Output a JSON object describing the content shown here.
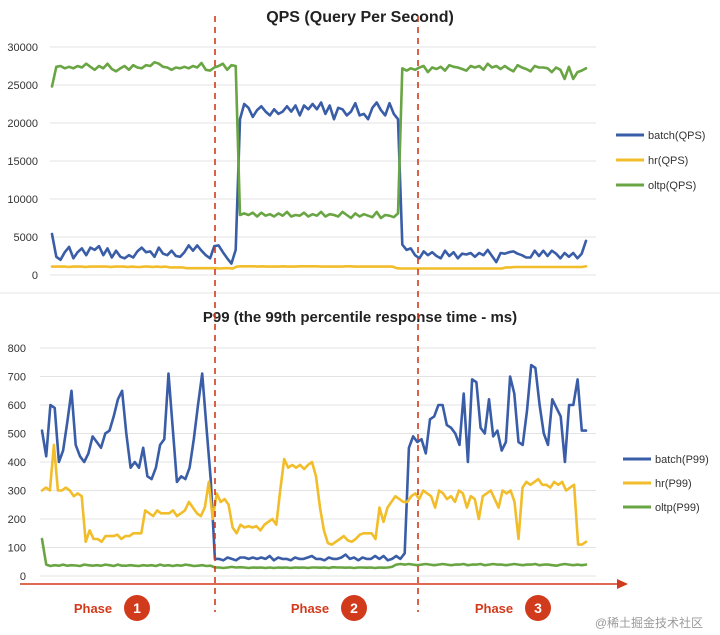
{
  "colors": {
    "batch": "#3a5da8",
    "hr": "#f2bd2a",
    "oltp": "#6aa544",
    "phase": "#d23a1c",
    "grid": "#e3e3e3",
    "axis_text": "#333333"
  },
  "chart_data": [
    {
      "type": "line",
      "title": "QPS (Query Per Second)",
      "ylim": [
        0,
        30000
      ],
      "yticks": [
        0,
        5000,
        10000,
        15000,
        20000,
        25000,
        30000
      ],
      "yticklabels": [
        "0",
        "5000",
        "10000",
        "15000",
        "20000",
        "25000",
        "30000"
      ],
      "grid": true,
      "legend": "right",
      "series": [
        {
          "name": "batch(QPS)",
          "color_key": "batch",
          "values": [
            5400,
            2400,
            2000,
            3000,
            3700,
            2200,
            3000,
            3500,
            2600,
            3600,
            3300,
            3800,
            2600,
            3500,
            2300,
            3200,
            2400,
            2200,
            2600,
            2300,
            3100,
            3600,
            3000,
            3100,
            2400,
            3600,
            2800,
            2600,
            3200,
            2500,
            2400,
            3000,
            3900,
            3200,
            3900,
            3200,
            2600,
            2200,
            3800,
            3900,
            3000,
            2200,
            1500,
            3300,
            20500,
            22500,
            22000,
            20800,
            21700,
            22200,
            21500,
            21000,
            21800,
            21200,
            21500,
            22200,
            21500,
            22300,
            21000,
            22300,
            21800,
            22500,
            21800,
            22700,
            21200,
            22300,
            20500,
            22000,
            21800,
            21000,
            21500,
            22600,
            21000,
            21200,
            20500,
            22000,
            22700,
            21700,
            21000,
            22600,
            21200,
            20500,
            4000,
            3300,
            3500,
            2600,
            2200,
            3100,
            2600,
            3000,
            2500,
            2200,
            3200,
            2500,
            3000,
            2200,
            2800,
            2700,
            2900,
            2400,
            2900,
            2600,
            3300,
            2500,
            1700,
            2900,
            2800,
            3000,
            3100,
            2800,
            2600,
            2300,
            2300,
            3200,
            2500,
            3200,
            2500,
            3200,
            2800,
            2200,
            2900,
            2400,
            2900,
            2200,
            2800,
            4500
          ]
        },
        {
          "name": "hr(QPS)",
          "color_key": "hr",
          "values": [
            1100,
            1100,
            1100,
            1100,
            1050,
            1100,
            1100,
            1100,
            1050,
            1100,
            1100,
            1100,
            1100,
            1100,
            1050,
            1100,
            1100,
            1100,
            1050,
            1100,
            1050,
            1050,
            1100,
            1100,
            1050,
            1100,
            1050,
            1100,
            1000,
            1000,
            1000,
            1000,
            900,
            900,
            900,
            900,
            900,
            900,
            900,
            900,
            850,
            900,
            900,
            850,
            1100,
            1150,
            1150,
            1150,
            1150,
            1100,
            1150,
            1100,
            1100,
            1100,
            1100,
            1150,
            1100,
            1100,
            1100,
            1150,
            1150,
            1150,
            1150,
            1150,
            1100,
            1100,
            1100,
            1100,
            1100,
            1100,
            1150,
            1150,
            1100,
            1100,
            1100,
            1100,
            1100,
            1100,
            1100,
            1100,
            1100,
            1100,
            900,
            850,
            850,
            850,
            850,
            850,
            850,
            850,
            850,
            850,
            850,
            850,
            850,
            850,
            850,
            850,
            850,
            850,
            850,
            850,
            850,
            850,
            850,
            850,
            850,
            850,
            1000,
            1000,
            1050,
            1050,
            1050,
            1050,
            1050,
            1050,
            1050,
            1050,
            1050,
            1050,
            1050,
            1050,
            1050,
            1050,
            1050,
            1050,
            1050,
            1150
          ]
        },
        {
          "name": "oltp(QPS)",
          "color_key": "oltp",
          "values": [
            24800,
            27400,
            27500,
            27200,
            27400,
            27200,
            27500,
            27300,
            27800,
            27400,
            27000,
            27500,
            27200,
            27800,
            27100,
            26800,
            27200,
            27500,
            27000,
            27600,
            27300,
            27200,
            27600,
            27500,
            28000,
            27800,
            27400,
            27300,
            27000,
            27300,
            27200,
            27400,
            27200,
            27500,
            27300,
            27900,
            27000,
            26900,
            27300,
            27500,
            27800,
            27000,
            27600,
            27500,
            7900,
            8100,
            7900,
            8200,
            7700,
            8200,
            7800,
            8000,
            7700,
            8100,
            7800,
            8300,
            7700,
            7900,
            7800,
            8200,
            7700,
            8000,
            7800,
            8300,
            7700,
            8000,
            7900,
            7700,
            8300,
            7900,
            7500,
            8100,
            7700,
            8000,
            7800,
            7600,
            8300,
            7500,
            7900,
            7800,
            7600,
            8100,
            27200,
            26900,
            27200,
            27000,
            27300,
            27500,
            26700,
            27300,
            27100,
            27400,
            26900,
            27600,
            27400,
            27300,
            27100,
            26900,
            27500,
            27300,
            27500,
            27000,
            27800,
            27300,
            27500,
            27100,
            27500,
            27100,
            26800,
            27600,
            27300,
            27100,
            26800,
            27500,
            27300,
            27300,
            27200,
            26700,
            27300,
            27000,
            25800,
            27400,
            25800,
            26700,
            26900,
            27200
          ]
        }
      ]
    },
    {
      "type": "line",
      "title": "P99 (the 99th percentile response time - ms)",
      "ylim": [
        0,
        800
      ],
      "yticks": [
        0,
        100,
        200,
        300,
        400,
        500,
        600,
        700,
        800
      ],
      "yticklabels": [
        "0",
        "100",
        "200",
        "300",
        "400",
        "500",
        "600",
        "700",
        "800"
      ],
      "grid": true,
      "legend": "right",
      "phases": [
        {
          "label": "Phase",
          "number": "1"
        },
        {
          "label": "Phase",
          "number": "2"
        },
        {
          "label": "Phase",
          "number": "3"
        }
      ],
      "series": [
        {
          "name": "batch(P99)",
          "color_key": "batch",
          "values": [
            510,
            420,
            600,
            590,
            400,
            440,
            540,
            650,
            460,
            420,
            400,
            430,
            490,
            470,
            450,
            500,
            510,
            560,
            620,
            650,
            500,
            380,
            400,
            380,
            450,
            350,
            340,
            380,
            460,
            480,
            710,
            520,
            330,
            350,
            340,
            380,
            480,
            600,
            710,
            520,
            340,
            60,
            60,
            55,
            65,
            60,
            55,
            65,
            65,
            60,
            65,
            60,
            65,
            60,
            70,
            55,
            65,
            60,
            60,
            55,
            65,
            60,
            60,
            65,
            70,
            60,
            60,
            55,
            65,
            60,
            60,
            65,
            75,
            60,
            65,
            55,
            65,
            60,
            60,
            70,
            60,
            70,
            55,
            60,
            70,
            60,
            80,
            450,
            490,
            470,
            480,
            430,
            550,
            560,
            600,
            600,
            530,
            520,
            500,
            460,
            640,
            400,
            690,
            680,
            520,
            500,
            620,
            490,
            510,
            440,
            470,
            700,
            640,
            470,
            460,
            580,
            740,
            730,
            600,
            500,
            460,
            620,
            590,
            560,
            400,
            600,
            600,
            690,
            510,
            510
          ]
        },
        {
          "name": "hr(P99)",
          "color_key": "hr",
          "values": [
            300,
            310,
            300,
            460,
            300,
            300,
            310,
            300,
            280,
            290,
            280,
            120,
            160,
            130,
            130,
            120,
            140,
            140,
            140,
            145,
            130,
            140,
            140,
            150,
            150,
            150,
            230,
            220,
            210,
            230,
            220,
            220,
            220,
            230,
            210,
            220,
            230,
            260,
            240,
            220,
            210,
            240,
            330,
            200,
            290,
            260,
            270,
            250,
            170,
            150,
            180,
            170,
            175,
            170,
            175,
            160,
            180,
            190,
            200,
            180,
            300,
            410,
            380,
            390,
            380,
            390,
            375,
            390,
            400,
            350,
            240,
            160,
            115,
            110,
            120,
            130,
            140,
            125,
            120,
            130,
            145,
            150,
            150,
            150,
            130,
            240,
            190,
            240,
            260,
            280,
            270,
            260,
            260,
            280,
            290,
            270,
            300,
            290,
            280,
            240,
            300,
            290,
            270,
            280,
            260,
            300,
            290,
            240,
            280,
            270,
            200,
            280,
            290,
            300,
            270,
            240,
            300,
            290,
            300,
            260,
            130,
            310,
            330,
            320,
            330,
            340,
            320,
            320,
            310,
            330,
            320,
            330,
            300,
            310,
            320,
            110,
            110,
            120
          ]
        },
        {
          "name": "oltp(P99)",
          "color_key": "oltp",
          "values": [
            130,
            40,
            35,
            38,
            36,
            40,
            36,
            38,
            37,
            35,
            40,
            38,
            36,
            38,
            36,
            40,
            38,
            35,
            40,
            36,
            36,
            38,
            36,
            35,
            38,
            36,
            38,
            35,
            40,
            36,
            38,
            35,
            38,
            36,
            40,
            38,
            35,
            36,
            38,
            35,
            36,
            30,
            30,
            28,
            30,
            32,
            30,
            31,
            30,
            28,
            30,
            29,
            30,
            28,
            30,
            28,
            30,
            29,
            30,
            28,
            30,
            29,
            30,
            28,
            30,
            30,
            29,
            30,
            28,
            31,
            30,
            30,
            29,
            30,
            28,
            30,
            30,
            29,
            30,
            28,
            30,
            29,
            30,
            32,
            40,
            42,
            40,
            42,
            40,
            38,
            40,
            42,
            40,
            38,
            40,
            42,
            40,
            38,
            40,
            40,
            42,
            38,
            40,
            40,
            42,
            38,
            40,
            42,
            40,
            40,
            38,
            40,
            42,
            40,
            38,
            40,
            40,
            42,
            38,
            40,
            40,
            38,
            36,
            40,
            42,
            40,
            38,
            40,
            38,
            40
          ]
        }
      ]
    }
  ],
  "watermark": "@稀土掘金技术社区"
}
